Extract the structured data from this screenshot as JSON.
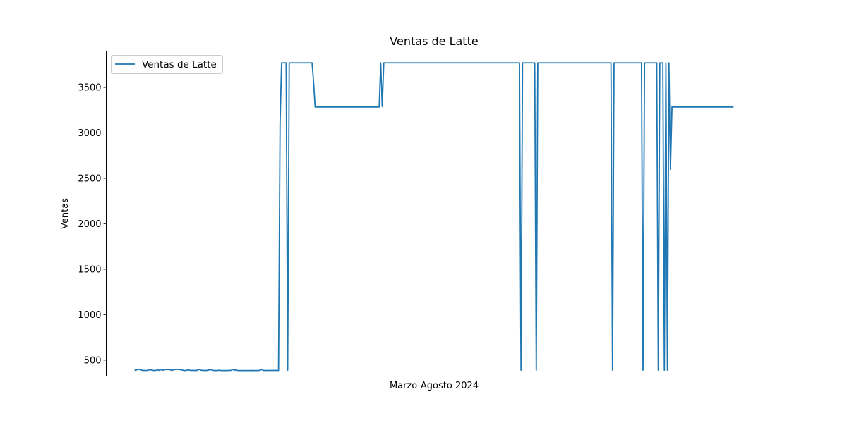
{
  "chart_data": {
    "type": "line",
    "title": "Ventas de Latte",
    "xlabel": "Marzo-Agosto 2024",
    "ylabel": "Ventas",
    "ylim": [
      325,
      3900
    ],
    "yticks": [
      500,
      1000,
      1500,
      2000,
      2500,
      3000,
      3500
    ],
    "yticklabels": [
      "500",
      "1000",
      "1500",
      "2000",
      "2500",
      "3000",
      "3500"
    ],
    "xticks_visible": false,
    "grid": false,
    "legend": "top-left",
    "series_color": "#1f77b4",
    "series": [
      {
        "name": "Ventas de Latte",
        "values": [
          390,
          394,
          399,
          400,
          392,
          387,
          387,
          387,
          388,
          393,
          396,
          390,
          387,
          387,
          389,
          394,
          388,
          397,
          389,
          394,
          398,
          399,
          397,
          395,
          386,
          395,
          397,
          400,
          399,
          398,
          395,
          391,
          387,
          386,
          390,
          396,
          388,
          387,
          388,
          387,
          387,
          392,
          399,
          390,
          388,
          387,
          388,
          387,
          391,
          397,
          394,
          388,
          387,
          386,
          387,
          389,
          387,
          386,
          386,
          386,
          386,
          387,
          387,
          389,
          399,
          389,
          395,
          387,
          386,
          386,
          386,
          386,
          386,
          386,
          386,
          386,
          386,
          387,
          386,
          386,
          386,
          387,
          390,
          399,
          387,
          386,
          387,
          387,
          387,
          387,
          387,
          387,
          387,
          387,
          387,
          3100,
          3770,
          3770,
          3770,
          3770,
          390,
          3770,
          3770,
          3770,
          3770,
          3770,
          3770,
          3770,
          3770,
          3770,
          3770,
          3770,
          3770,
          3770,
          3770,
          3770,
          3770,
          3550,
          3285,
          3285,
          3285,
          3285,
          3285,
          3285,
          3285,
          3285,
          3285,
          3285,
          3285,
          3285,
          3285,
          3285,
          3285,
          3285,
          3285,
          3285,
          3285,
          3285,
          3285,
          3285,
          3285,
          3285,
          3285,
          3285,
          3285,
          3285,
          3285,
          3285,
          3285,
          3285,
          3285,
          3285,
          3285,
          3285,
          3285,
          3285,
          3285,
          3285,
          3285,
          3285,
          3285,
          3770,
          3290,
          3770,
          3770,
          3770,
          3770,
          3770,
          3770,
          3770,
          3770,
          3770,
          3770,
          3770,
          3770,
          3770,
          3770,
          3770,
          3770,
          3770,
          3770,
          3770,
          3770,
          3770,
          3770,
          3770,
          3770,
          3770,
          3770,
          3770,
          3770,
          3770,
          3770,
          3770,
          3770,
          3770,
          3770,
          3770,
          3770,
          3770,
          3770,
          3770,
          3770,
          3770,
          3770,
          3770,
          3770,
          3770,
          3770,
          3770,
          3770,
          3770,
          3770,
          3770,
          3770,
          3770,
          3770,
          3770,
          3770,
          3770,
          3770,
          3770,
          3770,
          3770,
          3770,
          3770,
          3770,
          3770,
          3770,
          3770,
          3770,
          3770,
          3770,
          3770,
          3770,
          3770,
          3770,
          3770,
          3770,
          3770,
          3770,
          3770,
          3770,
          3770,
          3770,
          3770,
          3770,
          3770,
          3770,
          3770,
          3770,
          3770,
          3770,
          390,
          3770,
          3770,
          3770,
          3770,
          3770,
          3770,
          3770,
          3770,
          3770,
          390,
          3770,
          3770,
          3770,
          3770,
          3770,
          3770,
          3770,
          3770,
          3770,
          3770,
          3770,
          3770,
          3770,
          3770,
          3770,
          3770,
          3770,
          3770,
          3770,
          3770,
          3770,
          3770,
          3770,
          3770,
          3770,
          3770,
          3770,
          3770,
          3770,
          3770,
          3770,
          3770,
          3770,
          3770,
          3770,
          3770,
          3770,
          3770,
          3770,
          3770,
          3770,
          3770,
          3770,
          3770,
          3770,
          3770,
          3770,
          3770,
          3770,
          390,
          3770,
          3770,
          3770,
          3770,
          3770,
          3770,
          3770,
          3770,
          3770,
          3770,
          3770,
          3770,
          3770,
          3770,
          3770,
          3770,
          3770,
          3770,
          3770,
          390,
          3770,
          3770,
          3770,
          3770,
          3770,
          3770,
          3770,
          3770,
          3770,
          390,
          3770,
          3770,
          3770,
          390,
          3770,
          390,
          3770,
          2600,
          3285,
          3285,
          3285,
          3285,
          3285,
          3285,
          3285,
          3285,
          3285,
          3285,
          3285,
          3285,
          3285,
          3285,
          3285,
          3285,
          3285,
          3285,
          3285,
          3285,
          3285,
          3285,
          3285,
          3285,
          3285,
          3285,
          3285,
          3285,
          3285,
          3285,
          3285,
          3285,
          3285,
          3285,
          3285,
          3285,
          3285,
          3285,
          3285,
          3285,
          3285
        ]
      }
    ]
  }
}
